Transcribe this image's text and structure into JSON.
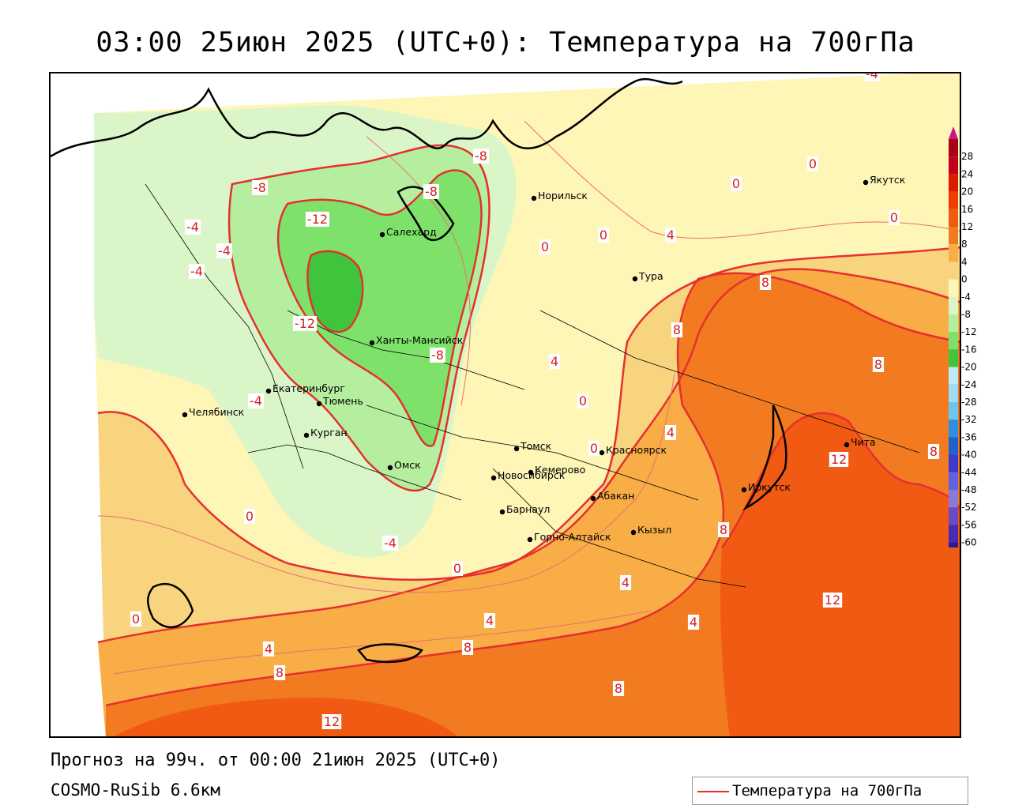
{
  "title": "03:00 25июн 2025 (UTC+0): Температура на 700гПа",
  "forecast_info": "Прогноз на 99ч. от 00:00 21июн 2025 (UTC+0)",
  "model_name": "COSMO-RuSib 6.6км",
  "legend": {
    "label": "Температура на 700гПа",
    "line_color": "#e53030"
  },
  "colors": {
    "pale_yellow": "#fdf6b6",
    "light_orange": "#f9d47f",
    "orange": "#f8ad46",
    "deep_orange": "#f27a21",
    "red_orange": "#f15a13",
    "very_light_green": "#daf6c9",
    "light_green": "#b6ee9f",
    "green": "#7ee26a",
    "dark_green": "#3fc43b",
    "isotherm": "#e53030"
  },
  "colorbar": {
    "ticks": [
      "28",
      "24",
      "20",
      "16",
      "12",
      "8",
      "4",
      "0",
      "-4",
      "-8",
      "-12",
      "-16",
      "-20",
      "-24",
      "-28",
      "-32",
      "-36",
      "-40",
      "-44",
      "-48",
      "-52",
      "-56",
      "-60"
    ],
    "colors": [
      "#a8001a",
      "#c2001e",
      "#dd1a00",
      "#ef3c00",
      "#f15a13",
      "#f27a21",
      "#f8ad46",
      "#f9d47f",
      "#fdf6b6",
      "#daf6c9",
      "#b6ee9f",
      "#7ee26a",
      "#3fc43b",
      "#bfe8f8",
      "#9ddcf4",
      "#6dc6ee",
      "#2e8ee0",
      "#1e62d0",
      "#3a3ad0",
      "#6262e0",
      "#8a7ad8",
      "#6a4ac0",
      "#4a2ab0",
      "#2a1a9a"
    ]
  },
  "cities": [
    {
      "name": "Норильск"
    },
    {
      "name": "Якутск"
    },
    {
      "name": "Салехард"
    },
    {
      "name": "Тура"
    },
    {
      "name": "Ханты-Мансийск"
    },
    {
      "name": "Екатеринбург"
    },
    {
      "name": "Тюмень"
    },
    {
      "name": "Челябинск"
    },
    {
      "name": "Курган"
    },
    {
      "name": "Омск"
    },
    {
      "name": "Томск"
    },
    {
      "name": "Красноярск"
    },
    {
      "name": "Кемерово"
    },
    {
      "name": "Новосибирск"
    },
    {
      "name": "Абакан"
    },
    {
      "name": "Барнаул"
    },
    {
      "name": "Горно-Алтайск"
    },
    {
      "name": "Кызыл"
    },
    {
      "name": "Иркутск"
    },
    {
      "name": "Чита"
    }
  ],
  "isotherm_labels": [
    "-4",
    "0",
    "0",
    "0",
    "-8",
    "-8",
    "-8",
    "-12",
    "-4",
    "-4",
    "0",
    "0",
    "4",
    "-4",
    "-12",
    "-8",
    "8",
    "4",
    "8",
    "8",
    "8",
    "4",
    "0",
    "-4",
    "-4",
    "8",
    "12",
    "4",
    "0",
    "0",
    "4",
    "8",
    "0",
    "12",
    "4",
    "8",
    "4",
    "0",
    "8",
    "8",
    "12"
  ]
}
